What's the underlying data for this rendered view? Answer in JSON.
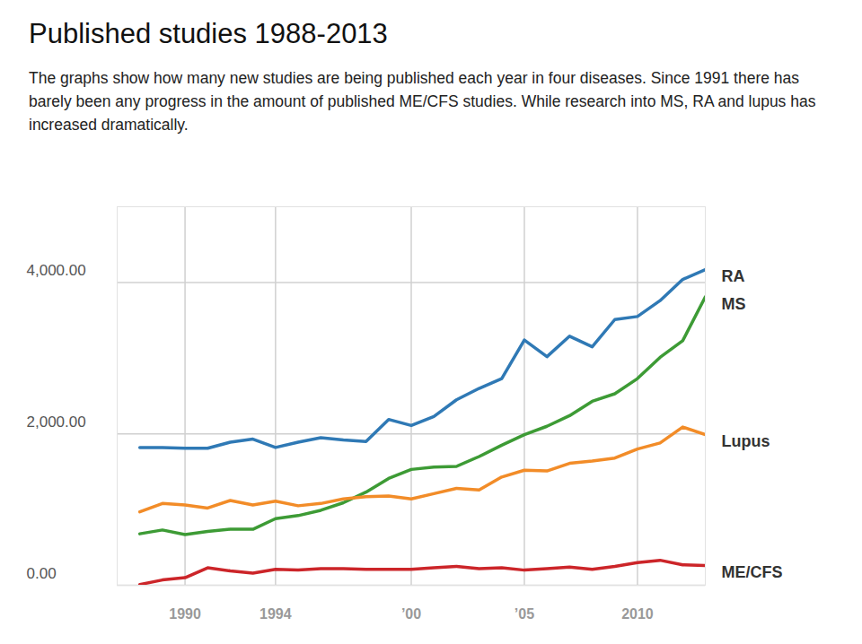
{
  "chart_data": {
    "type": "line",
    "title": "Published studies 1988-2013",
    "subtitle": "The graphs show how many new studies are being published each year in four diseases. Since 1991 there has barely been any progress in the amount of published ME/CFS studies. While research into MS, RA and lupus has increased dramatically.",
    "x": [
      1988,
      1989,
      1990,
      1991,
      1992,
      1993,
      1994,
      1995,
      1996,
      1997,
      1998,
      1999,
      2000,
      2001,
      2002,
      2003,
      2004,
      2005,
      2006,
      2007,
      2008,
      2009,
      2010,
      2011,
      2012,
      2013
    ],
    "series": [
      {
        "name": "RA",
        "color": "#2f79b5",
        "values": [
          1820,
          1820,
          1810,
          1810,
          1890,
          1930,
          1820,
          1890,
          1950,
          1920,
          1900,
          2190,
          2110,
          2230,
          2450,
          2600,
          2730,
          3240,
          3020,
          3290,
          3150,
          3510,
          3550,
          3760,
          4040,
          4170
        ]
      },
      {
        "name": "MS",
        "color": "#3d9b35",
        "values": [
          680,
          730,
          670,
          710,
          740,
          740,
          880,
          920,
          990,
          1090,
          1230,
          1410,
          1530,
          1560,
          1570,
          1700,
          1850,
          1990,
          2100,
          2240,
          2430,
          2530,
          2730,
          3010,
          3230,
          3810
        ]
      },
      {
        "name": "Lupus",
        "color": "#f28c28",
        "values": [
          970,
          1080,
          1060,
          1020,
          1120,
          1060,
          1110,
          1050,
          1080,
          1140,
          1170,
          1180,
          1140,
          1210,
          1280,
          1260,
          1430,
          1520,
          1510,
          1610,
          1640,
          1680,
          1800,
          1880,
          2090,
          1990
        ]
      },
      {
        "name": "ME/CFS",
        "color": "#cc2529",
        "values": [
          10,
          70,
          100,
          230,
          190,
          160,
          210,
          200,
          220,
          220,
          210,
          210,
          210,
          230,
          250,
          220,
          230,
          200,
          220,
          240,
          210,
          250,
          300,
          330,
          270,
          260
        ]
      }
    ],
    "xlim": [
      1987,
      2013
    ],
    "xticks": [
      1990,
      1994,
      {
        "value": 2000,
        "label": "’00"
      },
      {
        "value": 2005,
        "label": "’05"
      },
      2010
    ],
    "ylim": [
      0,
      5000
    ],
    "yticks": [
      {
        "value": 0,
        "label": "0.00"
      },
      {
        "value": 2000,
        "label": "2,000.00"
      },
      {
        "value": 4000,
        "label": "4,000.00"
      }
    ],
    "grid": true
  }
}
